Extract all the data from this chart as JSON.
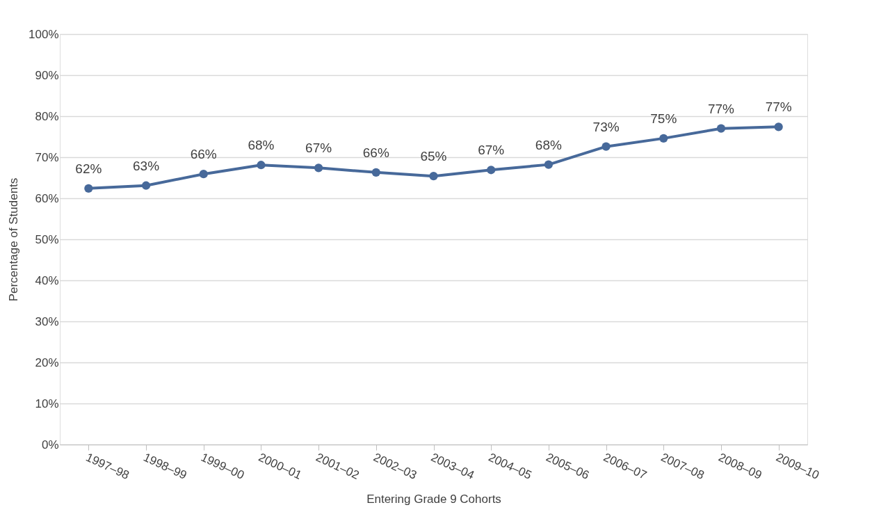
{
  "chart_data": {
    "type": "line",
    "xlabel": "Entering Grade 9 Cohorts",
    "ylabel": "Percentage of Students",
    "categories": [
      "1997–98",
      "1998–99",
      "1999–00",
      "2000–01",
      "2001–02",
      "2002–03",
      "2003–04",
      "2004–05",
      "2005–06",
      "2006–07",
      "2007–08",
      "2008–09",
      "2009–10"
    ],
    "series": [
      {
        "color": "#47699a",
        "values": [
          62.4,
          63.1,
          65.9,
          68.1,
          67.4,
          66.3,
          65.4,
          66.9,
          68.2,
          72.6,
          74.6,
          77.0,
          77.4
        ],
        "value_labels": [
          "62%",
          "63%",
          "66%",
          "68%",
          "67%",
          "66%",
          "65%",
          "67%",
          "68%",
          "73%",
          "75%",
          "77%",
          "77%"
        ]
      }
    ],
    "ylim": [
      0,
      100
    ],
    "yticks": [
      {
        "value": 0,
        "label": "0%"
      },
      {
        "value": 10,
        "label": "10%"
      },
      {
        "value": 20,
        "label": "20%"
      },
      {
        "value": 30,
        "label": "30%"
      },
      {
        "value": 40,
        "label": "40%"
      },
      {
        "value": 50,
        "label": "50%"
      },
      {
        "value": 60,
        "label": "60%"
      },
      {
        "value": 70,
        "label": "70%"
      },
      {
        "value": 80,
        "label": "80%"
      },
      {
        "value": 90,
        "label": "90%"
      },
      {
        "value": 100,
        "label": "100%"
      }
    ],
    "grid": "y",
    "marker": "circle",
    "line_style": "solid"
  }
}
